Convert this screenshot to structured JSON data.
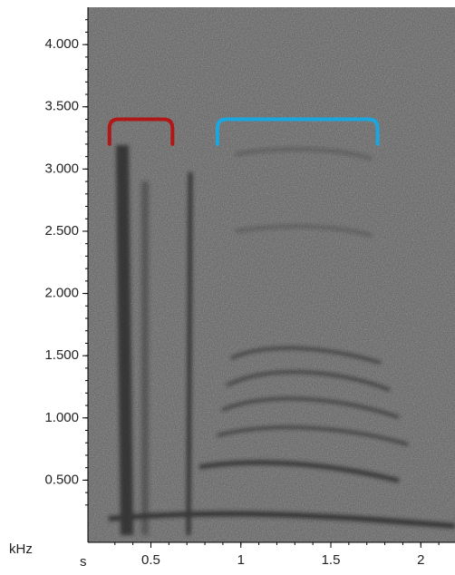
{
  "chart_data": {
    "type": "spectrogram",
    "xlabel": "s",
    "ylabel": "kHz",
    "xlim": [
      0.15,
      2.19
    ],
    "ylim": [
      0,
      4.3
    ],
    "xticks": [
      0.5,
      1,
      1.5,
      2
    ],
    "yticks": [
      {
        "value": 0.5,
        "label": "0.500"
      },
      {
        "value": 1,
        "label": "1.000"
      },
      {
        "value": 1.5,
        "label": "1.500"
      },
      {
        "value": 2,
        "label": "2.000"
      },
      {
        "value": 2.5,
        "label": "2.500"
      },
      {
        "value": 3,
        "label": "3.000"
      },
      {
        "value": 3.5,
        "label": "3.500"
      },
      {
        "value": 4,
        "label": "4.000"
      }
    ],
    "brackets": [
      {
        "color": "#b01818",
        "x": [
          0.27,
          0.62
        ],
        "y": [
          3.2,
          3.4
        ]
      },
      {
        "color": "#1aa7e0",
        "x": [
          0.87,
          1.76
        ],
        "y": [
          3.2,
          3.4
        ]
      }
    ]
  }
}
